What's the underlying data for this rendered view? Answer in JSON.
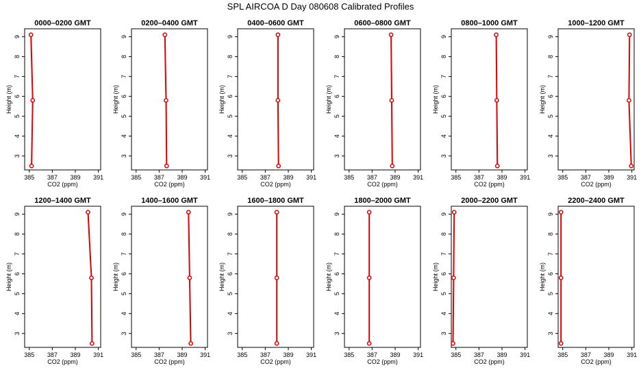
{
  "title": "SPL AIRCOA D  Day 080608  Calibrated Profiles",
  "colors": {
    "series": "#dd0000",
    "frame": "#000000",
    "background": "#ffffff"
  },
  "chart_data": [
    {
      "type": "line",
      "title": "0000–0200 GMT",
      "xlabel": "CO2 (ppm)",
      "ylabel": "Height (m)",
      "xlim": [
        384.6,
        391.2
      ],
      "ylim": [
        2.3,
        9.4
      ],
      "xticks": [
        385,
        387,
        389,
        391
      ],
      "yticks": [
        3,
        4,
        5,
        6,
        7,
        8,
        9
      ],
      "grid": false,
      "series": [
        {
          "x": [
            385.15,
            385.3,
            385.2
          ],
          "y": [
            9.1,
            5.8,
            2.5
          ]
        }
      ]
    },
    {
      "type": "line",
      "title": "0200–0400 GMT",
      "xlabel": "CO2 (ppm)",
      "ylabel": "Height (m)",
      "xlim": [
        384.6,
        391.2
      ],
      "ylim": [
        2.3,
        9.4
      ],
      "xticks": [
        385,
        387,
        389,
        391
      ],
      "yticks": [
        3,
        4,
        5,
        6,
        7,
        8,
        9
      ],
      "grid": false,
      "series": [
        {
          "x": [
            387.5,
            387.6,
            387.65
          ],
          "y": [
            9.1,
            5.8,
            2.5
          ]
        }
      ]
    },
    {
      "type": "line",
      "title": "0400–0600 GMT",
      "xlabel": "CO2 (ppm)",
      "ylabel": "Height (m)",
      "xlim": [
        384.6,
        391.2
      ],
      "ylim": [
        2.3,
        9.4
      ],
      "xticks": [
        385,
        387,
        389,
        391
      ],
      "yticks": [
        3,
        4,
        5,
        6,
        7,
        8,
        9
      ],
      "grid": false,
      "series": [
        {
          "x": [
            388.1,
            388.1,
            388.15
          ],
          "y": [
            9.1,
            5.8,
            2.5
          ]
        }
      ]
    },
    {
      "type": "line",
      "title": "0600–0800 GMT",
      "xlabel": "CO2 (ppm)",
      "ylabel": "Height (m)",
      "xlim": [
        384.6,
        391.2
      ],
      "ylim": [
        2.3,
        9.4
      ],
      "xticks": [
        385,
        387,
        389,
        391
      ],
      "yticks": [
        3,
        4,
        5,
        6,
        7,
        8,
        9
      ],
      "grid": false,
      "series": [
        {
          "x": [
            388.65,
            388.7,
            388.75
          ],
          "y": [
            9.1,
            5.8,
            2.5
          ]
        }
      ]
    },
    {
      "type": "line",
      "title": "0800–1000 GMT",
      "xlabel": "CO2 (ppm)",
      "ylabel": "Height (m)",
      "xlim": [
        384.6,
        391.2
      ],
      "ylim": [
        2.3,
        9.4
      ],
      "xticks": [
        385,
        387,
        389,
        391
      ],
      "yticks": [
        3,
        4,
        5,
        6,
        7,
        8,
        9
      ],
      "grid": false,
      "series": [
        {
          "x": [
            388.5,
            388.55,
            388.6
          ],
          "y": [
            9.1,
            5.8,
            2.5
          ]
        }
      ]
    },
    {
      "type": "line",
      "title": "1000–1200 GMT",
      "xlabel": "CO2 (ppm)",
      "ylabel": "Height (m)",
      "xlim": [
        384.6,
        391.2
      ],
      "ylim": [
        2.3,
        9.4
      ],
      "xticks": [
        385,
        387,
        389,
        391
      ],
      "yticks": [
        3,
        4,
        5,
        6,
        7,
        8,
        9
      ],
      "grid": false,
      "series": [
        {
          "x": [
            390.8,
            390.75,
            390.95
          ],
          "y": [
            9.1,
            5.8,
            2.5
          ]
        }
      ]
    },
    {
      "type": "line",
      "title": "1200–1400 GMT",
      "xlabel": "CO2 (ppm)",
      "ylabel": "Height (m)",
      "xlim": [
        384.6,
        391.2
      ],
      "ylim": [
        2.3,
        9.4
      ],
      "xticks": [
        385,
        387,
        389,
        391
      ],
      "yticks": [
        3,
        4,
        5,
        6,
        7,
        8,
        9
      ],
      "grid": false,
      "series": [
        {
          "x": [
            390.1,
            390.4,
            390.45
          ],
          "y": [
            9.1,
            5.8,
            2.5
          ]
        }
      ]
    },
    {
      "type": "line",
      "title": "1400–1600 GMT",
      "xlabel": "CO2 (ppm)",
      "ylabel": "Height (m)",
      "xlim": [
        384.6,
        391.2
      ],
      "ylim": [
        2.3,
        9.4
      ],
      "xticks": [
        385,
        387,
        389,
        391
      ],
      "yticks": [
        3,
        4,
        5,
        6,
        7,
        8,
        9
      ],
      "grid": false,
      "series": [
        {
          "x": [
            389.55,
            389.65,
            389.75
          ],
          "y": [
            9.1,
            5.8,
            2.5
          ]
        }
      ]
    },
    {
      "type": "line",
      "title": "1600–1800 GMT",
      "xlabel": "CO2 (ppm)",
      "ylabel": "Height (m)",
      "xlim": [
        384.6,
        391.2
      ],
      "ylim": [
        2.3,
        9.4
      ],
      "xticks": [
        385,
        387,
        389,
        391
      ],
      "yticks": [
        3,
        4,
        5,
        6,
        7,
        8,
        9
      ],
      "grid": false,
      "series": [
        {
          "x": [
            388.0,
            388.0,
            388.0
          ],
          "y": [
            9.1,
            5.8,
            2.5
          ]
        }
      ]
    },
    {
      "type": "line",
      "title": "1800–2000 GMT",
      "xlabel": "CO2 (ppm)",
      "ylabel": "Height (m)",
      "xlim": [
        384.6,
        391.2
      ],
      "ylim": [
        2.3,
        9.4
      ],
      "xticks": [
        385,
        387,
        389,
        391
      ],
      "yticks": [
        3,
        4,
        5,
        6,
        7,
        8,
        9
      ],
      "grid": false,
      "series": [
        {
          "x": [
            386.75,
            386.75,
            386.75
          ],
          "y": [
            9.1,
            5.8,
            2.5
          ]
        }
      ]
    },
    {
      "type": "line",
      "title": "2000–2200 GMT",
      "xlabel": "CO2 (ppm)",
      "ylabel": "Height (m)",
      "xlim": [
        384.6,
        391.2
      ],
      "ylim": [
        2.3,
        9.4
      ],
      "xticks": [
        385,
        387,
        389,
        391
      ],
      "yticks": [
        3,
        4,
        5,
        6,
        7,
        8,
        9
      ],
      "grid": false,
      "series": [
        {
          "x": [
            384.85,
            384.8,
            384.75
          ],
          "y": [
            9.1,
            5.8,
            2.5
          ]
        }
      ]
    },
    {
      "type": "line",
      "title": "2200–2400 GMT",
      "xlabel": "CO2 (ppm)",
      "ylabel": "Height (m)",
      "xlim": [
        384.6,
        391.2
      ],
      "ylim": [
        2.3,
        9.4
      ],
      "xticks": [
        385,
        387,
        389,
        391
      ],
      "yticks": [
        3,
        4,
        5,
        6,
        7,
        8,
        9
      ],
      "grid": false,
      "series": [
        {
          "x": [
            384.85,
            384.85,
            384.85
          ],
          "y": [
            9.1,
            5.8,
            2.5
          ]
        }
      ]
    }
  ]
}
